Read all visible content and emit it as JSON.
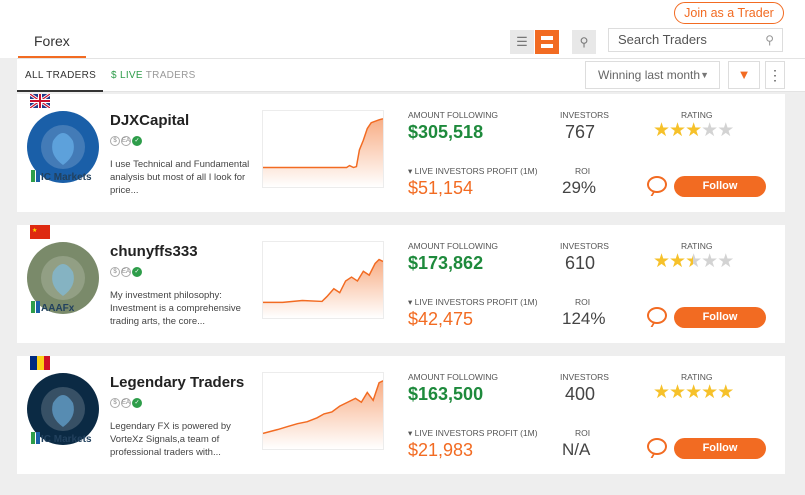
{
  "header": {
    "join_label": "Join as a Trader",
    "forex_tab": "Forex",
    "search_placeholder": "Search Traders"
  },
  "filters": {
    "all_traders": "ALL TRADERS",
    "live_dollar": "$",
    "live_traders": "LIVE TRADERS",
    "sort_value": "Winning last month"
  },
  "labels": {
    "amount_following": "AMOUNT FOLLOWING",
    "investors": "INVESTORS",
    "rating": "RATING",
    "live_profit": "▾ LIVE INVESTORS PROFIT (1M)",
    "roi": "ROI",
    "follow": "Follow"
  },
  "traders": [
    {
      "name": "DJXCapital",
      "broker": "IC Markets",
      "flag": "uk",
      "description": "I use Technical and Fundamental analysis but most of all I look for price...",
      "amount_following": "$305,518",
      "investors": "767",
      "live_profit": "$51,154",
      "roi": "29%",
      "rating": 3,
      "accent": "#1a5fa8"
    },
    {
      "name": "chunyffs333",
      "broker": "AAAFx",
      "flag": "cn",
      "description": "My investment philosophy: Investment is a comprehensive trading arts, the core...",
      "amount_following": "$173,862",
      "investors": "610",
      "live_profit": "$42,475",
      "roi": "124%",
      "rating": 2.5,
      "accent": "#7a8a6a"
    },
    {
      "name": "Legendary Traders",
      "broker": "IC Markets",
      "flag": "ro",
      "description": "Legendary FX is powered by VorteXz Signals,a team of professional traders with...",
      "amount_following": "$163,500",
      "investors": "400",
      "live_profit": "$21,983",
      "roi": "N/A",
      "rating": 5,
      "accent": "#0b2a44"
    }
  ],
  "colors": {
    "accent": "#f26b22",
    "green": "#1e8a3c",
    "star": "#f6c12a"
  }
}
